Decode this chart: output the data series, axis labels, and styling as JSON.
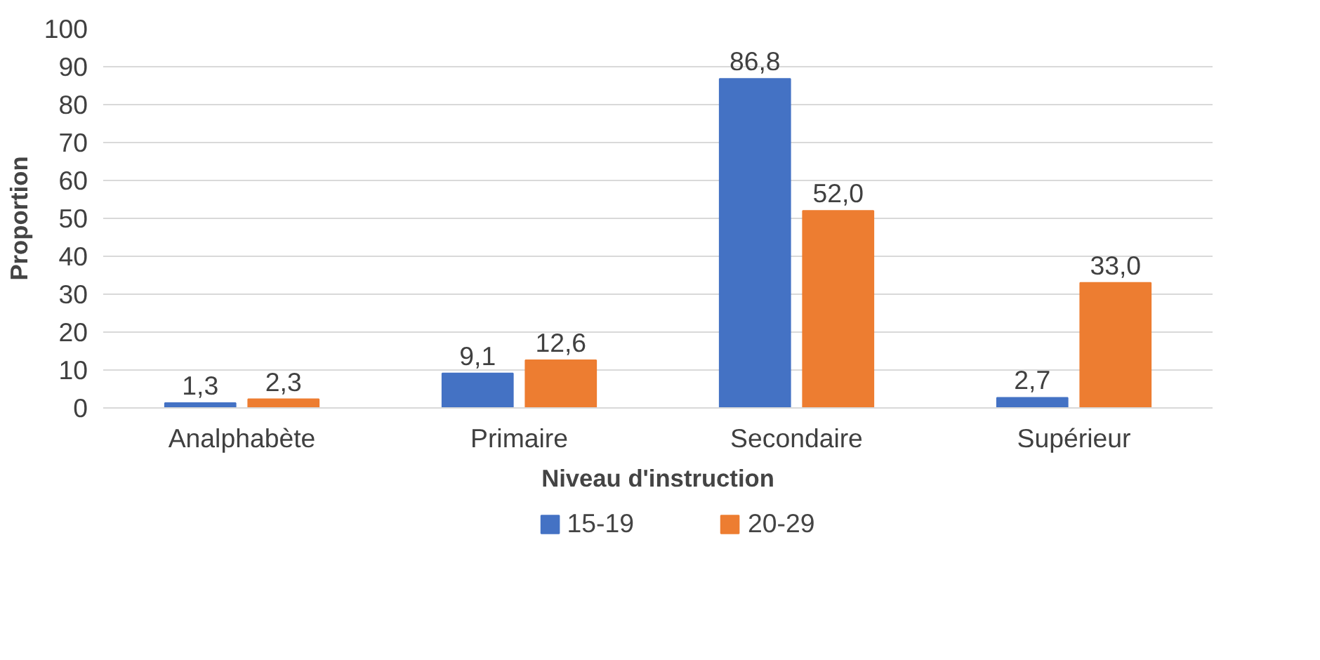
{
  "chart_data": {
    "type": "bar",
    "xlabel": "Niveau d'instruction",
    "ylabel": "Proportion",
    "categories": [
      "Analphabète",
      "Primaire",
      "Secondaire",
      "Supérieur"
    ],
    "series": [
      {
        "name": "15-19",
        "color": "#4472c4",
        "values": [
          1.3,
          9.1,
          86.8,
          2.7
        ],
        "value_labels": [
          "1,3",
          "9,1",
          "86,8",
          "2,7"
        ]
      },
      {
        "name": "20-29",
        "color": "#ed7d31",
        "values": [
          2.3,
          12.6,
          52.0,
          33.0
        ],
        "value_labels": [
          "2,3",
          "12,6",
          "52,0",
          "33,0"
        ]
      }
    ],
    "ylim": [
      0,
      100
    ],
    "yticks": [
      0,
      10,
      20,
      30,
      40,
      50,
      60,
      70,
      80,
      90,
      100
    ],
    "grid": "y",
    "legend": "bottom"
  }
}
